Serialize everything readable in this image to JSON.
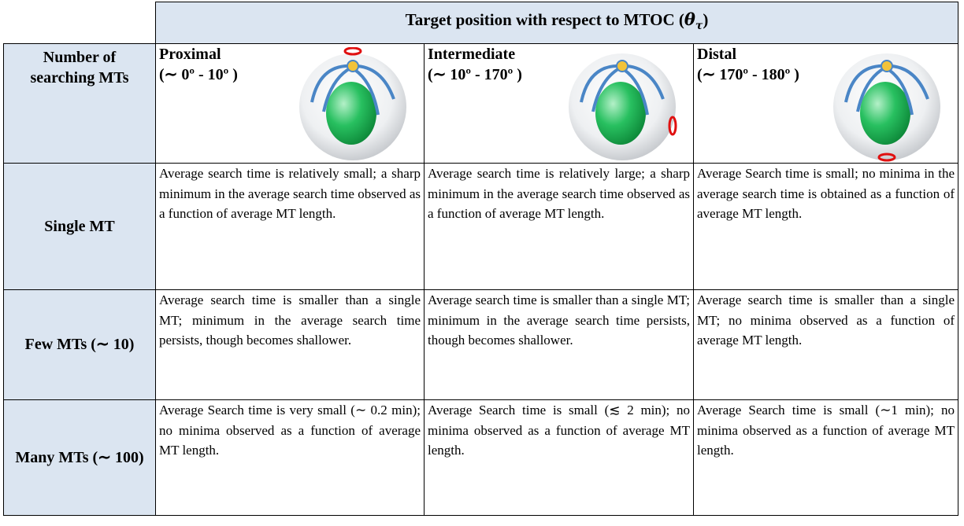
{
  "header": {
    "title_parts": [
      "Target position with respect to MTOC (",
      "θ",
      "τ",
      ")"
    ]
  },
  "row_header_label": [
    "Number of",
    "searching MTs"
  ],
  "columns": [
    {
      "name": "Proximal",
      "range": "(∼ 0º - 10º )"
    },
    {
      "name": "Intermediate",
      "range": "(∼ 10º - 170º )"
    },
    {
      "name": "Distal",
      "range": "(∼ 170º - 180º )"
    }
  ],
  "rows": [
    {
      "label": "Single MT",
      "cells": [
        "Average search time is relatively small; a sharp minimum in the average search time observed as a function of average MT length.",
        "Average search time is relatively large; a sharp minimum in the average search time observed as a function of average MT length.",
        "Average Search time is small; no minima in the average search time is obtained as a function of average MT length."
      ]
    },
    {
      "label": "Few MTs (∼ 10)",
      "cells": [
        "Average search time is smaller than a single MT; minimum in the average search time persists, though becomes shallower.",
        "Average search time is smaller than a single MT; minimum in the average search time persists, though becomes shallower.",
        "Average search time is smaller than a single MT; no minima observed as a function of average MT length."
      ]
    },
    {
      "label": "Many MTs (∼ 100)",
      "cells": [
        "Average Search time is very small (∼ 0.2 min); no minima observed as a function of average MT length.",
        "Average Search time is small (≲ 2 min); no minima observed as a function of average MT length.",
        "Average Search time is small (∼1 min); no minima observed as a function of average MT length."
      ]
    }
  ]
}
